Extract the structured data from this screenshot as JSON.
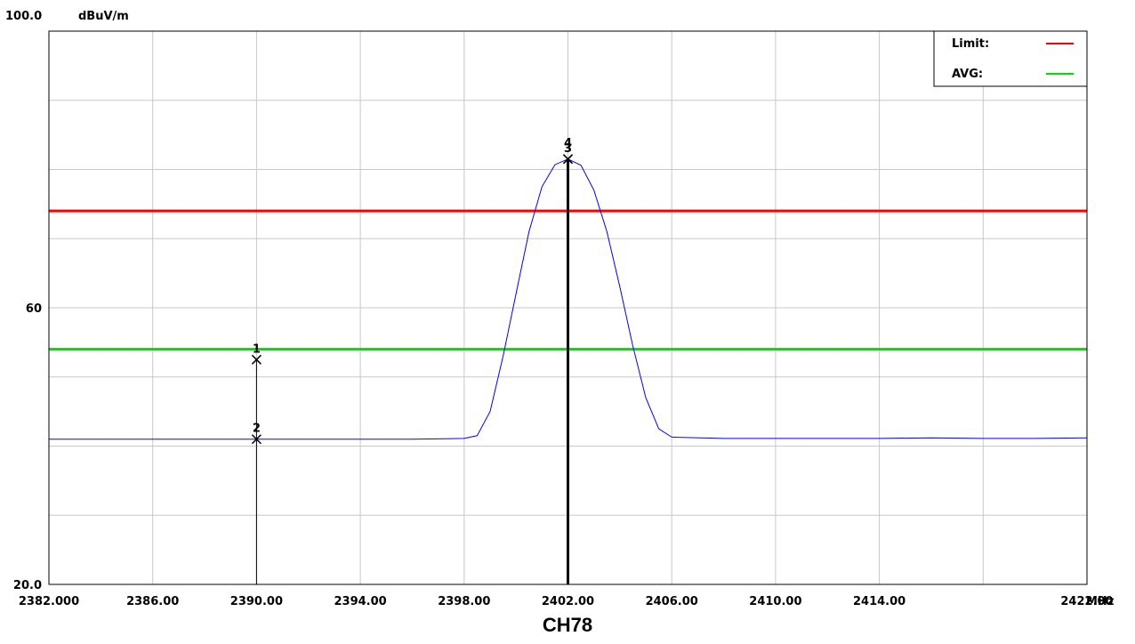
{
  "chart_data": {
    "type": "line",
    "title": "CH78",
    "y_unit": "dBuV/m",
    "x_unit": "MHz",
    "xlim": [
      2382,
      2422
    ],
    "ylim": [
      20,
      100
    ],
    "x_tick_labels": [
      {
        "value": 2382,
        "text": "2382.000"
      },
      {
        "value": 2386,
        "text": "2386.00"
      },
      {
        "value": 2390,
        "text": "2390.00"
      },
      {
        "value": 2394,
        "text": "2394.00"
      },
      {
        "value": 2398,
        "text": "2398.00"
      },
      {
        "value": 2402,
        "text": "2402.00"
      },
      {
        "value": 2406,
        "text": "2406.00"
      },
      {
        "value": 2410,
        "text": "2410.00"
      },
      {
        "value": 2414,
        "text": "2414.00"
      },
      {
        "value": 2422,
        "text": "2422.00"
      }
    ],
    "y_tick_labels": [
      {
        "value": 100,
        "text": "100.0"
      },
      {
        "value": 60,
        "text": "60"
      },
      {
        "value": 20,
        "text": "20.0"
      }
    ],
    "grid": true,
    "x_grid_step": 4,
    "y_grid_step": 10,
    "legend_position": "top-right",
    "legend": [
      {
        "label": "Limit:",
        "color": "#ff0000"
      },
      {
        "label": "AVG:",
        "color": "#00dd00"
      }
    ],
    "reference_lines": [
      {
        "name": "Limit:",
        "y": 74,
        "color": "#ff0000"
      },
      {
        "name": "AVG:",
        "y": 54,
        "color": "#00dd00"
      }
    ],
    "series": [
      {
        "color": "#0000ff",
        "x": [
          2382,
          2384,
          2386,
          2388,
          2390,
          2392,
          2394,
          2396,
          2398,
          2398.5,
          2399,
          2399.5,
          2400,
          2400.5,
          2401,
          2401.5,
          2402,
          2402.5,
          2403,
          2403.5,
          2404,
          2404.5,
          2405,
          2405.5,
          2406,
          2408,
          2410,
          2412,
          2414,
          2416,
          2418,
          2420,
          2422
        ],
        "y": [
          41.0,
          41.0,
          41.0,
          41.0,
          41.0,
          41.0,
          41.0,
          41.0,
          41.1,
          41.5,
          45.0,
          53.0,
          62.0,
          71.0,
          77.5,
          80.7,
          81.5,
          80.6,
          77.0,
          71.0,
          63.0,
          54.5,
          47.0,
          42.5,
          41.3,
          41.1,
          41.1,
          41.1,
          41.1,
          41.2,
          41.1,
          41.1,
          41.2
        ]
      }
    ],
    "markers": [
      {
        "label": "1",
        "x": 2390,
        "y": 52.5,
        "line_width": 1
      },
      {
        "label": "2",
        "x": 2390,
        "y": 41.0,
        "line_width": 1
      },
      {
        "label": "3",
        "x": 2402,
        "y": 81.5,
        "line_width": 3
      },
      {
        "label": "4",
        "x": 2402,
        "y": 81.5,
        "line_width": 3
      }
    ]
  }
}
